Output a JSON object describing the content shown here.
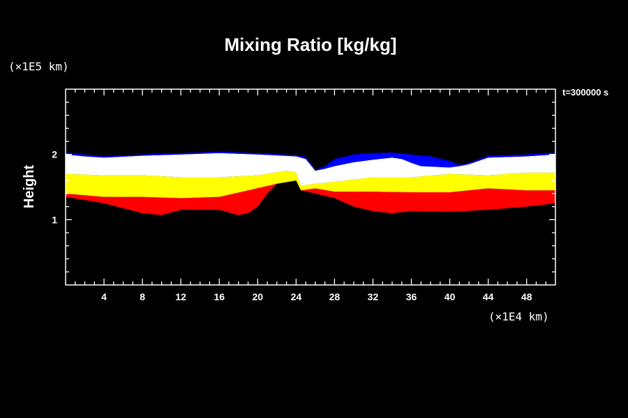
{
  "colors": {
    "background": "#000000",
    "foreground": "#ffffff",
    "band_red": "#ff0000",
    "band_yellow": "#ffff00",
    "band_white": "#ffffff",
    "band_blue": "#0000ff",
    "band_green": "#00ff00"
  },
  "chart_data": {
    "type": "heatmap",
    "title": "Mixing Ratio [kg/kg]",
    "ylabel": "Height",
    "xlabel": "",
    "x_unit": "(×1E4 km)",
    "y_unit": "(×1E5 km)",
    "time_label": "t=300000 s",
    "xlim": [
      0,
      51
    ],
    "ylim": [
      0,
      3
    ],
    "x_ticks": [
      4,
      8,
      12,
      16,
      20,
      24,
      28,
      32,
      36,
      40,
      44,
      48
    ],
    "y_ticks": [
      1,
      2
    ],
    "x_minor_step": 1,
    "y_minor_step": 0.2,
    "grid": false,
    "legend": false,
    "layers": [
      {
        "color": "band_red",
        "top": [
          [
            0,
            1.4
          ],
          [
            4,
            1.35
          ],
          [
            8,
            1.35
          ],
          [
            12,
            1.33
          ],
          [
            16,
            1.35
          ],
          [
            19,
            1.45
          ],
          [
            22,
            1.55
          ],
          [
            24,
            1.6
          ],
          [
            24.5,
            1.45
          ],
          [
            26,
            1.48
          ],
          [
            28,
            1.43
          ],
          [
            32,
            1.43
          ],
          [
            36,
            1.42
          ],
          [
            40,
            1.42
          ],
          [
            44,
            1.48
          ],
          [
            48,
            1.45
          ],
          [
            51,
            1.45
          ]
        ],
        "bottom": [
          [
            0,
            1.35
          ],
          [
            2,
            1.3
          ],
          [
            4,
            1.25
          ],
          [
            8,
            1.1
          ],
          [
            10,
            1.07
          ],
          [
            12,
            1.15
          ],
          [
            16,
            1.15
          ],
          [
            18,
            1.07
          ],
          [
            19,
            1.1
          ],
          [
            20,
            1.2
          ],
          [
            21,
            1.4
          ],
          [
            22,
            1.55
          ],
          [
            24,
            1.6
          ],
          [
            24.5,
            1.45
          ],
          [
            26,
            1.4
          ],
          [
            28,
            1.33
          ],
          [
            30,
            1.2
          ],
          [
            32,
            1.13
          ],
          [
            34,
            1.1
          ],
          [
            36,
            1.13
          ],
          [
            40,
            1.12
          ],
          [
            44,
            1.15
          ],
          [
            48,
            1.2
          ],
          [
            51,
            1.25
          ]
        ]
      },
      {
        "color": "band_yellow",
        "top": [
          [
            0,
            1.7
          ],
          [
            4,
            1.68
          ],
          [
            8,
            1.68
          ],
          [
            12,
            1.65
          ],
          [
            16,
            1.65
          ],
          [
            20,
            1.68
          ],
          [
            23,
            1.75
          ],
          [
            24,
            1.72
          ],
          [
            24.5,
            1.52
          ],
          [
            26,
            1.55
          ],
          [
            28,
            1.58
          ],
          [
            32,
            1.65
          ],
          [
            36,
            1.65
          ],
          [
            40,
            1.7
          ],
          [
            44,
            1.68
          ],
          [
            48,
            1.72
          ],
          [
            51,
            1.72
          ]
        ],
        "bottom": [
          [
            0,
            1.4
          ],
          [
            4,
            1.35
          ],
          [
            8,
            1.35
          ],
          [
            12,
            1.33
          ],
          [
            16,
            1.35
          ],
          [
            19,
            1.45
          ],
          [
            22,
            1.55
          ],
          [
            24,
            1.6
          ],
          [
            24.5,
            1.45
          ],
          [
            26,
            1.48
          ],
          [
            28,
            1.43
          ],
          [
            32,
            1.43
          ],
          [
            36,
            1.42
          ],
          [
            40,
            1.42
          ],
          [
            44,
            1.48
          ],
          [
            48,
            1.45
          ],
          [
            51,
            1.45
          ]
        ]
      },
      {
        "color": "band_white",
        "top": [
          [
            0,
            2.0
          ],
          [
            2,
            1.97
          ],
          [
            4,
            1.95
          ],
          [
            8,
            1.98
          ],
          [
            12,
            2.0
          ],
          [
            16,
            2.02
          ],
          [
            20,
            2.0
          ],
          [
            24,
            1.97
          ],
          [
            25,
            1.93
          ],
          [
            26,
            1.75
          ],
          [
            27,
            1.78
          ],
          [
            28,
            1.82
          ],
          [
            30,
            1.88
          ],
          [
            32,
            1.92
          ],
          [
            34,
            1.95
          ],
          [
            35,
            1.93
          ],
          [
            36,
            1.87
          ],
          [
            37,
            1.82
          ],
          [
            40,
            1.8
          ],
          [
            41,
            1.82
          ],
          [
            42,
            1.85
          ],
          [
            44,
            1.95
          ],
          [
            48,
            1.97
          ],
          [
            51,
            2.0
          ]
        ],
        "bottom": [
          [
            0,
            1.7
          ],
          [
            4,
            1.68
          ],
          [
            8,
            1.68
          ],
          [
            12,
            1.65
          ],
          [
            16,
            1.65
          ],
          [
            20,
            1.68
          ],
          [
            23,
            1.75
          ],
          [
            24,
            1.72
          ],
          [
            24.5,
            1.52
          ],
          [
            26,
            1.55
          ],
          [
            28,
            1.58
          ],
          [
            32,
            1.65
          ],
          [
            36,
            1.65
          ],
          [
            40,
            1.7
          ],
          [
            44,
            1.68
          ],
          [
            48,
            1.72
          ],
          [
            51,
            1.72
          ]
        ]
      },
      {
        "color": "band_blue",
        "top": [
          [
            0,
            2.03
          ],
          [
            2,
            2.0
          ],
          [
            4,
            1.97
          ],
          [
            8,
            2.0
          ],
          [
            12,
            2.02
          ],
          [
            16,
            2.04
          ],
          [
            20,
            2.02
          ],
          [
            24,
            1.99
          ],
          [
            25,
            1.96
          ],
          [
            26,
            1.76
          ],
          [
            27,
            1.82
          ],
          [
            28,
            1.93
          ],
          [
            30,
            2.0
          ],
          [
            32,
            2.02
          ],
          [
            34,
            2.03
          ],
          [
            36,
            2.0
          ],
          [
            38,
            1.97
          ],
          [
            40,
            1.9
          ],
          [
            41,
            1.84
          ],
          [
            42,
            1.87
          ],
          [
            44,
            1.98
          ],
          [
            48,
            2.0
          ],
          [
            51,
            2.03
          ]
        ],
        "bottom": [
          [
            0,
            2.0
          ],
          [
            2,
            1.97
          ],
          [
            4,
            1.95
          ],
          [
            8,
            1.98
          ],
          [
            12,
            2.0
          ],
          [
            16,
            2.02
          ],
          [
            20,
            2.0
          ],
          [
            24,
            1.97
          ],
          [
            25,
            1.93
          ],
          [
            26,
            1.75
          ],
          [
            27,
            1.78
          ],
          [
            28,
            1.82
          ],
          [
            30,
            1.88
          ],
          [
            32,
            1.92
          ],
          [
            34,
            1.95
          ],
          [
            35,
            1.93
          ],
          [
            36,
            1.87
          ],
          [
            37,
            1.82
          ],
          [
            40,
            1.8
          ],
          [
            41,
            1.82
          ],
          [
            42,
            1.85
          ],
          [
            44,
            1.95
          ],
          [
            48,
            1.97
          ],
          [
            51,
            2.0
          ]
        ]
      }
    ]
  }
}
